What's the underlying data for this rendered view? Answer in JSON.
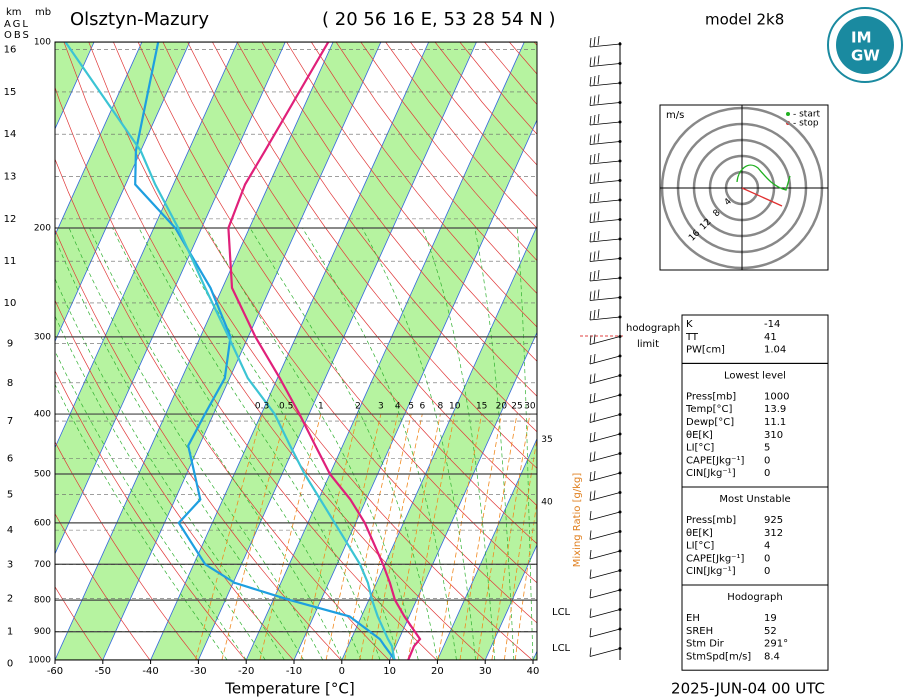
{
  "header": {
    "station": "Olsztyn-Mazury",
    "coords": "( 20 56 16  E, 53 28 54 N )",
    "model": "model 2k8",
    "logo_top": "IM",
    "logo_bottom": "GW",
    "date": "2025-JUN-04   00 UTC"
  },
  "chart_data": {
    "type": "skewt",
    "xlabel": "Temperature [°C]",
    "xlim": [
      -60,
      40
    ],
    "xticks": [
      -60,
      -50,
      -40,
      -30,
      -20,
      -10,
      0,
      10,
      20,
      30,
      40
    ],
    "ylim": [
      1000,
      100
    ],
    "yticks": [
      100,
      200,
      300,
      400,
      500,
      600,
      700,
      800,
      900,
      1000
    ],
    "log_y": true,
    "pressure_units": "mb",
    "height_axis": {
      "units": "km",
      "labels": [
        "AGL",
        "OBS"
      ],
      "ticks": [
        0,
        1,
        2,
        3,
        4,
        5,
        6,
        7,
        8,
        9,
        10,
        11,
        12,
        13,
        14,
        15,
        16
      ]
    },
    "pressure": [
      1000,
      950,
      925,
      850,
      800,
      750,
      700,
      600,
      550,
      500,
      450,
      400,
      350,
      300,
      250,
      200,
      170,
      150,
      100
    ],
    "series": [
      {
        "color": "#e0207a",
        "values": [
          13.9,
          13.8,
          14.4,
          9,
          5.5,
          2.8,
          -0.4,
          -8.1,
          -13.3,
          -20,
          -25.7,
          -32,
          -39.5,
          -48.5,
          -58,
          -64.4,
          -65,
          -64,
          -61
        ]
      },
      {
        "color": "#1e9fe0",
        "values": [
          11.1,
          7.7,
          6,
          -2.5,
          -16.5,
          -29.7,
          -37.6,
          -47,
          -44.7,
          -48.3,
          -52.3,
          -51.8,
          -51,
          -53.7,
          -62.5,
          -75.5,
          -88,
          -91,
          -96.6
        ]
      },
      {
        "color": "#3cc4d4",
        "values": [
          11,
          9.2,
          7.7,
          3.4,
          0.7,
          -1.8,
          -5.2,
          -14.4,
          -19.6,
          -25.3,
          -31,
          -37.2,
          -46.2,
          -54.1,
          -63.6,
          -74.9,
          -83.8,
          -90,
          -116
        ]
      }
    ],
    "mixing_ratio": {
      "label": "Mixing Ratio [g/kg]",
      "values": [
        0.3,
        0.5,
        1,
        2,
        3,
        4,
        5,
        6,
        8,
        10,
        15,
        20,
        25,
        30,
        35,
        40
      ]
    },
    "lcl_labels": [
      "LCL",
      "LCL"
    ],
    "hodograph_limit": [
      "hodograph",
      "limit"
    ]
  },
  "hodograph": {
    "units": "m/s",
    "start": "- start",
    "stop": "- stop",
    "rings": [
      4,
      8,
      12,
      16
    ]
  },
  "stats": {
    "sections": [
      {
        "rows": [
          [
            "K",
            -14
          ],
          [
            "TT",
            41
          ],
          [
            "PW[cm]",
            1.04
          ]
        ]
      },
      {
        "title": "Lowest level",
        "rows": [
          [
            "Press[mb]",
            1000
          ],
          [
            "Temp[°C]",
            13.9
          ],
          [
            "Dewp[°C]",
            11.1
          ],
          [
            "θE[K]",
            310
          ],
          [
            "LI[°C]",
            5
          ],
          [
            "CAPE[Jkg⁻¹]",
            0
          ],
          [
            "CIN[Jkg⁻¹]",
            0
          ]
        ]
      },
      {
        "title": "Most Unstable",
        "rows": [
          [
            "Press[mb]",
            925
          ],
          [
            "θE[K]",
            312
          ],
          [
            "LI[°C]",
            4
          ],
          [
            "CAPE[Jkg⁻¹]",
            0
          ],
          [
            "CIN[Jkg⁻¹]",
            0
          ]
        ]
      },
      {
        "title": "Hodograph",
        "rows": [
          [
            "EH",
            19
          ],
          [
            "SREH",
            52
          ],
          [
            "Stm Dir",
            "291°"
          ],
          [
            "StmSpd[m/s]",
            8.4
          ]
        ]
      }
    ]
  }
}
